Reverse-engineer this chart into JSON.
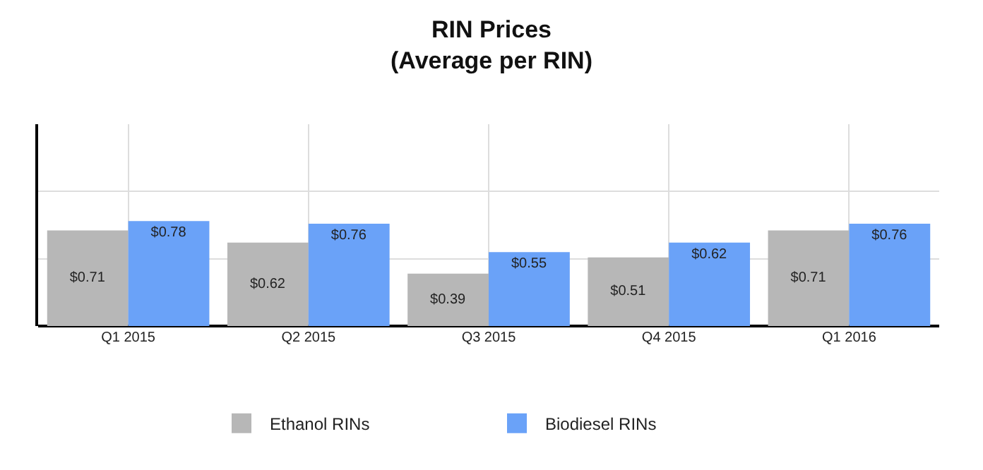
{
  "chart_data": {
    "type": "bar",
    "title": "RIN Prices",
    "subtitle": "(Average per RIN)",
    "categories": [
      "Q1 2015",
      "Q2 2015",
      "Q3 2015",
      "Q4 2015",
      "Q1 2016"
    ],
    "series": [
      {
        "name": "Ethanol RINs",
        "color": "#b7b7b7",
        "values": [
          0.71,
          0.62,
          0.39,
          0.51,
          0.71
        ],
        "value_labels": [
          "$0.71",
          "$0.62",
          "$0.39",
          "$0.51",
          "$0.71"
        ]
      },
      {
        "name": "Biodiesel RINs",
        "color": "#6aa2f8",
        "values": [
          0.78,
          0.76,
          0.55,
          0.62,
          0.76
        ],
        "value_labels": [
          "$0.78",
          "$0.76",
          "$0.55",
          "$0.62",
          "$0.76"
        ]
      }
    ],
    "ylim": [
      0,
      1.5
    ],
    "yticks": [
      {
        "value": 0.5,
        "label": null
      },
      {
        "value": 1,
        "label": null
      }
    ],
    "grid": true,
    "legend": "bottom",
    "marker": "square"
  }
}
